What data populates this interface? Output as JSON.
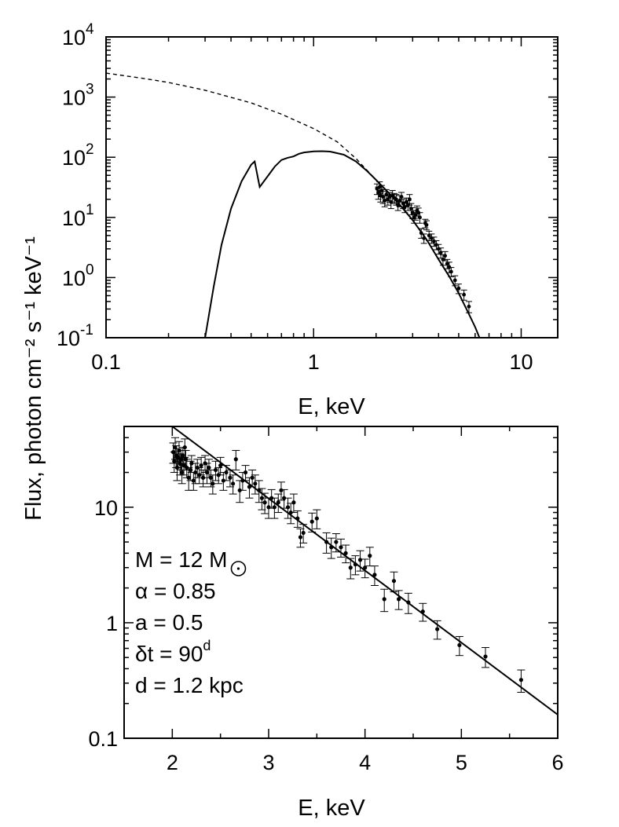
{
  "ylabel": "Flux,  photon cm⁻² s⁻¹ keV⁻¹",
  "chart_data": [
    {
      "type": "line",
      "panel": "top",
      "xlabel": "E, keV",
      "xscale": "log",
      "yscale": "log",
      "xlim": [
        0.1,
        15
      ],
      "ylim": [
        0.1,
        10000
      ],
      "xticks": [
        {
          "value": 0.1,
          "label": "0.1"
        },
        {
          "value": 1,
          "label": "1"
        },
        {
          "value": 10,
          "label": "10"
        }
      ],
      "yticks": [
        {
          "value": 0.1,
          "base": "10",
          "exp": "-1"
        },
        {
          "value": 1,
          "base": "10",
          "exp": "0"
        },
        {
          "value": 10,
          "base": "10",
          "exp": "1"
        },
        {
          "value": 100,
          "base": "10",
          "exp": "2"
        },
        {
          "value": 1000,
          "base": "10",
          "exp": "3"
        },
        {
          "value": 10000,
          "base": "10",
          "exp": "4"
        }
      ],
      "series": [
        {
          "style": "dashed",
          "x": [
            0.1,
            0.15,
            0.2,
            0.3,
            0.5,
            0.7,
            1.0,
            1.3,
            1.6,
            2.0
          ],
          "y": [
            2500,
            2050,
            1750,
            1300,
            800,
            520,
            300,
            180,
            95,
            42
          ]
        },
        {
          "style": "solid",
          "x": [
            0.3,
            0.33,
            0.36,
            0.4,
            0.45,
            0.5,
            0.52,
            0.55,
            0.6,
            0.65,
            0.7,
            0.75,
            0.8,
            0.85,
            0.9,
            1.0,
            1.1,
            1.2,
            1.4,
            1.6,
            1.8,
            2.0,
            2.5,
            3.0,
            3.5,
            4.0,
            4.5,
            5.0,
            5.5,
            6.0,
            6.3
          ],
          "y": [
            0.1,
            0.7,
            3.5,
            14,
            40,
            75,
            85,
            32,
            48,
            70,
            90,
            98,
            103,
            114,
            120,
            125,
            126,
            124,
            110,
            85,
            60,
            42,
            19,
            9,
            4.3,
            2.0,
            1.05,
            0.55,
            0.28,
            0.15,
            0.1
          ]
        },
        {
          "style": "points-with-errors",
          "x": [
            2.02,
            2.05,
            2.08,
            2.1,
            2.13,
            2.16,
            2.2,
            2.24,
            2.28,
            2.32,
            2.36,
            2.4,
            2.45,
            2.5,
            2.55,
            2.6,
            2.65,
            2.7,
            2.75,
            2.8,
            2.85,
            2.9,
            2.95,
            3.0,
            3.05,
            3.1,
            3.15,
            3.2,
            3.25,
            3.3,
            3.4,
            3.45,
            3.5,
            3.6,
            3.7,
            3.8,
            3.9,
            4.0,
            4.1,
            4.2,
            4.3,
            4.4,
            4.5,
            4.6,
            4.8,
            5.0,
            5.3,
            5.6
          ],
          "y": [
            30,
            26,
            32,
            23,
            28,
            22,
            19,
            24,
            20,
            22,
            18,
            23,
            21,
            20,
            16,
            19,
            22,
            17,
            15,
            18,
            16,
            20,
            14,
            12,
            10,
            11,
            13,
            12,
            10,
            5.5,
            4.5,
            8,
            7.5,
            5,
            4.5,
            4,
            3.5,
            3,
            2.6,
            2,
            2.3,
            1.7,
            1.5,
            1.25,
            0.9,
            0.66,
            0.52,
            0.33
          ],
          "err": [
            6,
            6,
            7,
            5,
            6,
            5,
            4,
            5,
            4,
            4,
            4,
            5,
            4,
            4,
            3,
            4,
            4,
            3,
            3,
            3,
            3,
            4,
            3,
            2.5,
            2,
            2,
            2.5,
            2.3,
            2,
            1,
            0.8,
            1.3,
            1.3,
            0.9,
            0.8,
            0.7,
            0.6,
            0.55,
            0.5,
            0.4,
            0.4,
            0.3,
            0.3,
            0.22,
            0.17,
            0.12,
            0.1,
            0.07
          ]
        }
      ]
    },
    {
      "type": "scatter",
      "panel": "bottom",
      "xlabel": "E, keV",
      "xscale": "linear",
      "yscale": "log",
      "xlim": [
        1.5,
        6
      ],
      "ylim": [
        0.1,
        50
      ],
      "xticks": [
        {
          "value": 2,
          "label": "2"
        },
        {
          "value": 3,
          "label": "3"
        },
        {
          "value": 4,
          "label": "4"
        },
        {
          "value": 5,
          "label": "5"
        },
        {
          "value": 6,
          "label": "6"
        }
      ],
      "yticks": [
        {
          "value": 0.1,
          "label": "0.1"
        },
        {
          "value": 1,
          "label": "1"
        },
        {
          "value": 10,
          "label": "10"
        }
      ],
      "model_line": {
        "x": [
          2.0,
          6.0
        ],
        "y": [
          50,
          0.16
        ]
      },
      "points": {
        "x": [
          2.01,
          2.02,
          2.03,
          2.04,
          2.05,
          2.06,
          2.07,
          2.08,
          2.09,
          2.1,
          2.11,
          2.12,
          2.13,
          2.14,
          2.15,
          2.17,
          2.19,
          2.2,
          2.22,
          2.24,
          2.26,
          2.28,
          2.3,
          2.32,
          2.34,
          2.36,
          2.38,
          2.4,
          2.42,
          2.45,
          2.48,
          2.5,
          2.53,
          2.56,
          2.6,
          2.63,
          2.66,
          2.7,
          2.73,
          2.76,
          2.8,
          2.83,
          2.86,
          2.9,
          2.93,
          2.96,
          3.0,
          3.03,
          3.06,
          3.1,
          3.13,
          3.16,
          3.2,
          3.23,
          3.26,
          3.3,
          3.33,
          3.36,
          3.45,
          3.5,
          3.6,
          3.65,
          3.7,
          3.75,
          3.8,
          3.85,
          3.9,
          3.95,
          4.0,
          4.05,
          4.1,
          4.2,
          4.3,
          4.35,
          4.45,
          4.6,
          4.75,
          4.98,
          5.25,
          5.62
        ],
        "y": [
          30,
          25,
          33,
          28,
          22,
          27,
          31,
          24,
          26,
          20,
          28,
          23,
          33,
          26,
          22,
          18,
          21,
          24,
          17,
          20,
          22,
          19,
          23,
          18,
          24,
          20,
          22,
          18,
          16,
          21,
          19,
          23,
          17,
          20,
          18,
          16,
          26,
          14,
          17,
          20,
          15,
          18,
          16,
          14,
          12,
          11,
          10,
          12,
          10,
          11,
          14,
          12,
          10,
          9,
          11,
          8,
          5.5,
          6,
          7.5,
          8,
          5,
          4.5,
          5,
          4.5,
          4,
          3,
          3.2,
          3.5,
          3,
          3.8,
          2.6,
          1.6,
          2.3,
          1.6,
          1.5,
          1.25,
          0.88,
          0.64,
          0.51,
          0.32
        ],
        "err": [
          6,
          5,
          7,
          6,
          5,
          5,
          6,
          5,
          5,
          4,
          5,
          4,
          6,
          5,
          4,
          4,
          4,
          4,
          3,
          4,
          4,
          3,
          4,
          3,
          4,
          4,
          4,
          3,
          3,
          4,
          3,
          4,
          3,
          3,
          3,
          3,
          5,
          3,
          3,
          3,
          3,
          3,
          3,
          3,
          2.5,
          2.2,
          2,
          2.2,
          2,
          2,
          2.5,
          2.2,
          2,
          1.8,
          2,
          1.3,
          1,
          1.1,
          1.4,
          1.5,
          1,
          0.9,
          0.9,
          0.8,
          0.7,
          0.6,
          0.6,
          0.7,
          0.55,
          0.7,
          0.5,
          0.35,
          0.45,
          0.3,
          0.3,
          0.22,
          0.16,
          0.12,
          0.1,
          0.07
        ]
      },
      "annotations": [
        {
          "text": "M = 12 M",
          "sun_symbol": true
        },
        {
          "text": "α = 0.85"
        },
        {
          "text": "a = 0.5"
        },
        {
          "text": "δt = 90",
          "sup": "d"
        },
        {
          "text": "d = 1.2 kpc"
        }
      ]
    }
  ]
}
